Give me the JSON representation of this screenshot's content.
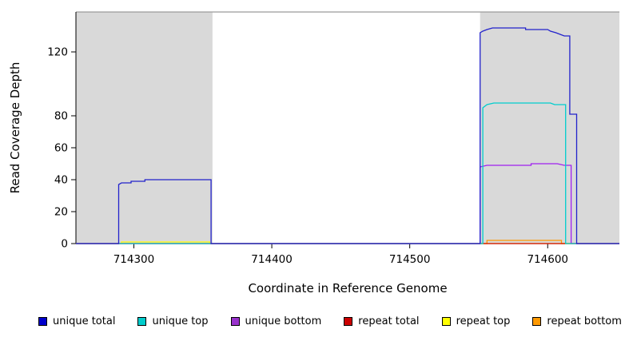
{
  "chart_data": {
    "type": "line",
    "title": "",
    "xlabel": "Coordinate in Reference Genome",
    "ylabel": "Read Coverage Depth",
    "xlim": [
      714258,
      714652
    ],
    "ylim": [
      0,
      145
    ],
    "x_ticks": [
      714300,
      714400,
      714500,
      714600
    ],
    "y_ticks": [
      0,
      20,
      40,
      60,
      80,
      120
    ],
    "grid": false,
    "legend_position": "bottom",
    "panel_background": "#ffffff",
    "shaded_color": "#d9d9d9",
    "top_border_color": "#9b9b9b",
    "shaded_regions": [
      [
        714258,
        714357
      ],
      [
        714551,
        714652
      ]
    ],
    "series": [
      {
        "name": "unique total",
        "color": "#2222cc",
        "points": [
          [
            714258,
            0
          ],
          [
            714289,
            0
          ],
          [
            714289,
            37
          ],
          [
            714291,
            38
          ],
          [
            714298,
            38
          ],
          [
            714298,
            39
          ],
          [
            714308,
            39
          ],
          [
            714308,
            40
          ],
          [
            714356,
            40
          ],
          [
            714356,
            0
          ],
          [
            714551,
            0
          ],
          [
            714551,
            132
          ],
          [
            714553,
            133
          ],
          [
            714556,
            134
          ],
          [
            714560,
            135
          ],
          [
            714584,
            135
          ],
          [
            714584,
            134
          ],
          [
            714600,
            134
          ],
          [
            714602,
            133
          ],
          [
            714606,
            132
          ],
          [
            714609,
            131
          ],
          [
            714612,
            130
          ],
          [
            714616,
            130
          ],
          [
            714616,
            81
          ],
          [
            714621,
            81
          ],
          [
            714621,
            0
          ],
          [
            714652,
            0
          ]
        ]
      },
      {
        "name": "unique top",
        "color": "#00cdcd",
        "points": [
          [
            714258,
            0
          ],
          [
            714553,
            0
          ],
          [
            714553,
            85
          ],
          [
            714556,
            87
          ],
          [
            714561,
            88
          ],
          [
            714602,
            88
          ],
          [
            714605,
            87
          ],
          [
            714613,
            87
          ],
          [
            714613,
            0
          ],
          [
            714652,
            0
          ]
        ]
      },
      {
        "name": "unique bottom",
        "color": "#a020f0",
        "points": [
          [
            714258,
            0
          ],
          [
            714551,
            0
          ],
          [
            714551,
            48
          ],
          [
            714556,
            49
          ],
          [
            714588,
            49
          ],
          [
            714588,
            50
          ],
          [
            714607,
            50
          ],
          [
            714612,
            49
          ],
          [
            714617,
            49
          ],
          [
            714617,
            0
          ],
          [
            714652,
            0
          ]
        ]
      },
      {
        "name": "repeat total",
        "color": "#cc0000",
        "points": [
          [
            714258,
            0
          ],
          [
            714652,
            0
          ]
        ]
      },
      {
        "name": "repeat top",
        "color": "#ffff00",
        "points": [
          [
            714258,
            0
          ],
          [
            714291,
            0
          ],
          [
            714291,
            1
          ],
          [
            714355,
            1
          ],
          [
            714355,
            0
          ],
          [
            714652,
            0
          ]
        ]
      },
      {
        "name": "repeat bottom",
        "color": "#ff9900",
        "points": [
          [
            714258,
            0
          ],
          [
            714556,
            0
          ],
          [
            714556,
            2
          ],
          [
            714610,
            2
          ],
          [
            714610,
            0
          ],
          [
            714652,
            0
          ]
        ]
      }
    ],
    "legend": [
      {
        "label": "unique total",
        "color": "#0000cc"
      },
      {
        "label": "unique top",
        "color": "#00cccc"
      },
      {
        "label": "unique bottom",
        "color": "#9932cc"
      },
      {
        "label": "repeat total",
        "color": "#cc0000"
      },
      {
        "label": "repeat top",
        "color": "#ffff00"
      },
      {
        "label": "repeat bottom",
        "color": "#ff9900"
      }
    ]
  }
}
